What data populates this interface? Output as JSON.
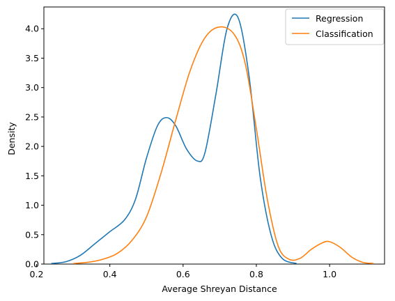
{
  "chart_data": {
    "type": "line",
    "title": "",
    "xlabel": "Average Shreyan Distance",
    "ylabel": "Density",
    "xlim": [
      0.22,
      1.15
    ],
    "ylim": [
      0,
      4.37
    ],
    "xticks": [
      0.2,
      0.4,
      0.6,
      0.8,
      1.0
    ],
    "xtick_labels": [
      "0.2",
      "0.4",
      "0.6",
      "0.8",
      "1.0"
    ],
    "yticks": [
      0,
      0.5,
      1.0,
      1.5,
      2.0,
      2.5,
      3.0,
      3.5,
      4.0
    ],
    "ytick_labels": [
      "0.0",
      "0.5",
      "1.0",
      "1.5",
      "2.0",
      "2.5",
      "3.0",
      "3.5",
      "4.0"
    ],
    "grid": false,
    "legend_position": "top-right",
    "series": [
      {
        "name": "Regression",
        "color": "#1f77b4",
        "x": [
          0.24,
          0.28,
          0.32,
          0.36,
          0.4,
          0.44,
          0.47,
          0.5,
          0.53,
          0.555,
          0.58,
          0.61,
          0.64,
          0.66,
          0.69,
          0.72,
          0.75,
          0.78,
          0.81,
          0.84,
          0.87,
          0.91
        ],
        "y": [
          0.01,
          0.04,
          0.15,
          0.35,
          0.55,
          0.75,
          1.1,
          1.8,
          2.35,
          2.49,
          2.35,
          1.95,
          1.75,
          1.9,
          2.9,
          4.0,
          4.19,
          3.2,
          1.5,
          0.5,
          0.1,
          0.01
        ]
      },
      {
        "name": "Classification",
        "color": "#ff7f0e",
        "x": [
          0.3,
          0.34,
          0.38,
          0.42,
          0.46,
          0.5,
          0.54,
          0.58,
          0.62,
          0.66,
          0.7,
          0.74,
          0.77,
          0.8,
          0.83,
          0.86,
          0.89,
          0.92,
          0.95,
          0.98,
          1.0,
          1.03,
          1.06,
          1.09,
          1.12
        ],
        "y": [
          0.01,
          0.03,
          0.08,
          0.18,
          0.4,
          0.8,
          1.55,
          2.45,
          3.3,
          3.85,
          4.03,
          3.9,
          3.4,
          2.3,
          1.1,
          0.3,
          0.08,
          0.1,
          0.25,
          0.36,
          0.38,
          0.28,
          0.12,
          0.03,
          0.01
        ]
      }
    ]
  }
}
